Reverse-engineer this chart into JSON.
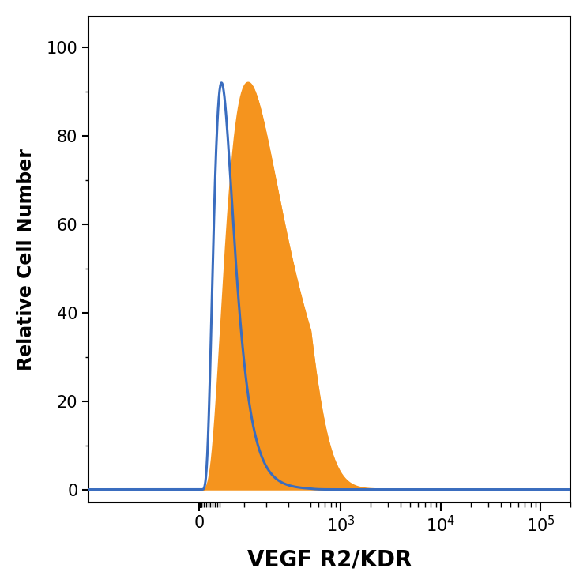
{
  "xlabel": "VEGF R2/KDR",
  "ylabel": "Relative Cell Number",
  "ylim": [
    -3,
    107
  ],
  "yticks": [
    0,
    20,
    40,
    60,
    80,
    100
  ],
  "xticks": [
    0,
    1000,
    10000,
    100000
  ],
  "xtick_labels": [
    "0",
    "10^3",
    "10^4",
    "10^5"
  ],
  "blue_color": "#3a6dbf",
  "orange_color": "#f5941e",
  "blue_linewidth": 2.2,
  "orange_linewidth": 1.8,
  "xlabel_fontsize": 20,
  "ylabel_fontsize": 17,
  "tick_fontsize": 15,
  "background_color": "#ffffff",
  "blue_peak_x": 100,
  "blue_peak_y": 92,
  "blue_sigma": 0.2,
  "orange_peak_x": 220,
  "orange_peak_y": 92,
  "orange_sigma": 0.26,
  "linthresh": 500,
  "linscale": 1.0
}
